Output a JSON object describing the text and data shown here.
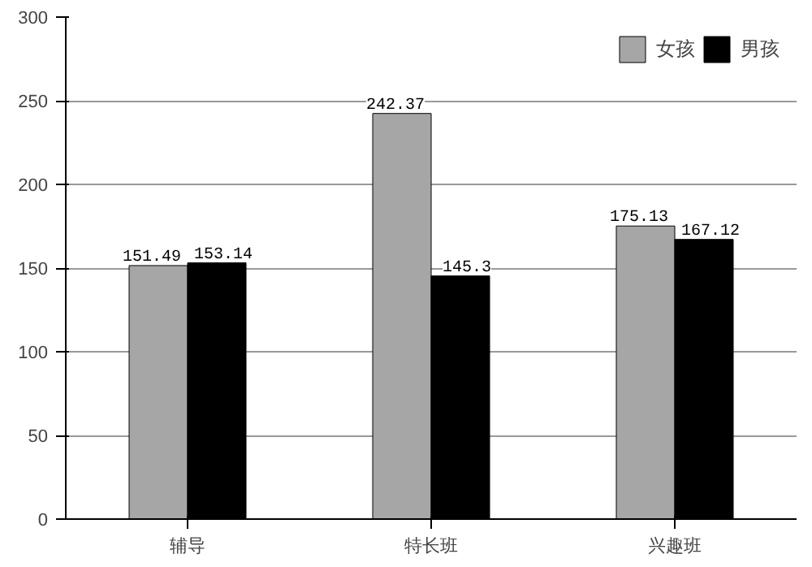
{
  "chart_data": {
    "type": "bar",
    "categories": [
      "辅导",
      "特长班",
      "兴趣班"
    ],
    "series": [
      {
        "name": "女孩",
        "color": "#a6a6a6",
        "values": [
          151.49,
          242.37,
          175.13
        ]
      },
      {
        "name": "男孩",
        "color": "#000000",
        "values": [
          153.14,
          145.3,
          167.12
        ]
      }
    ],
    "ylim": [
      0,
      300
    ],
    "yticks": [
      0,
      50,
      100,
      150,
      200,
      250,
      300
    ],
    "grid": "y",
    "legend": "top right",
    "data_labels": true
  }
}
